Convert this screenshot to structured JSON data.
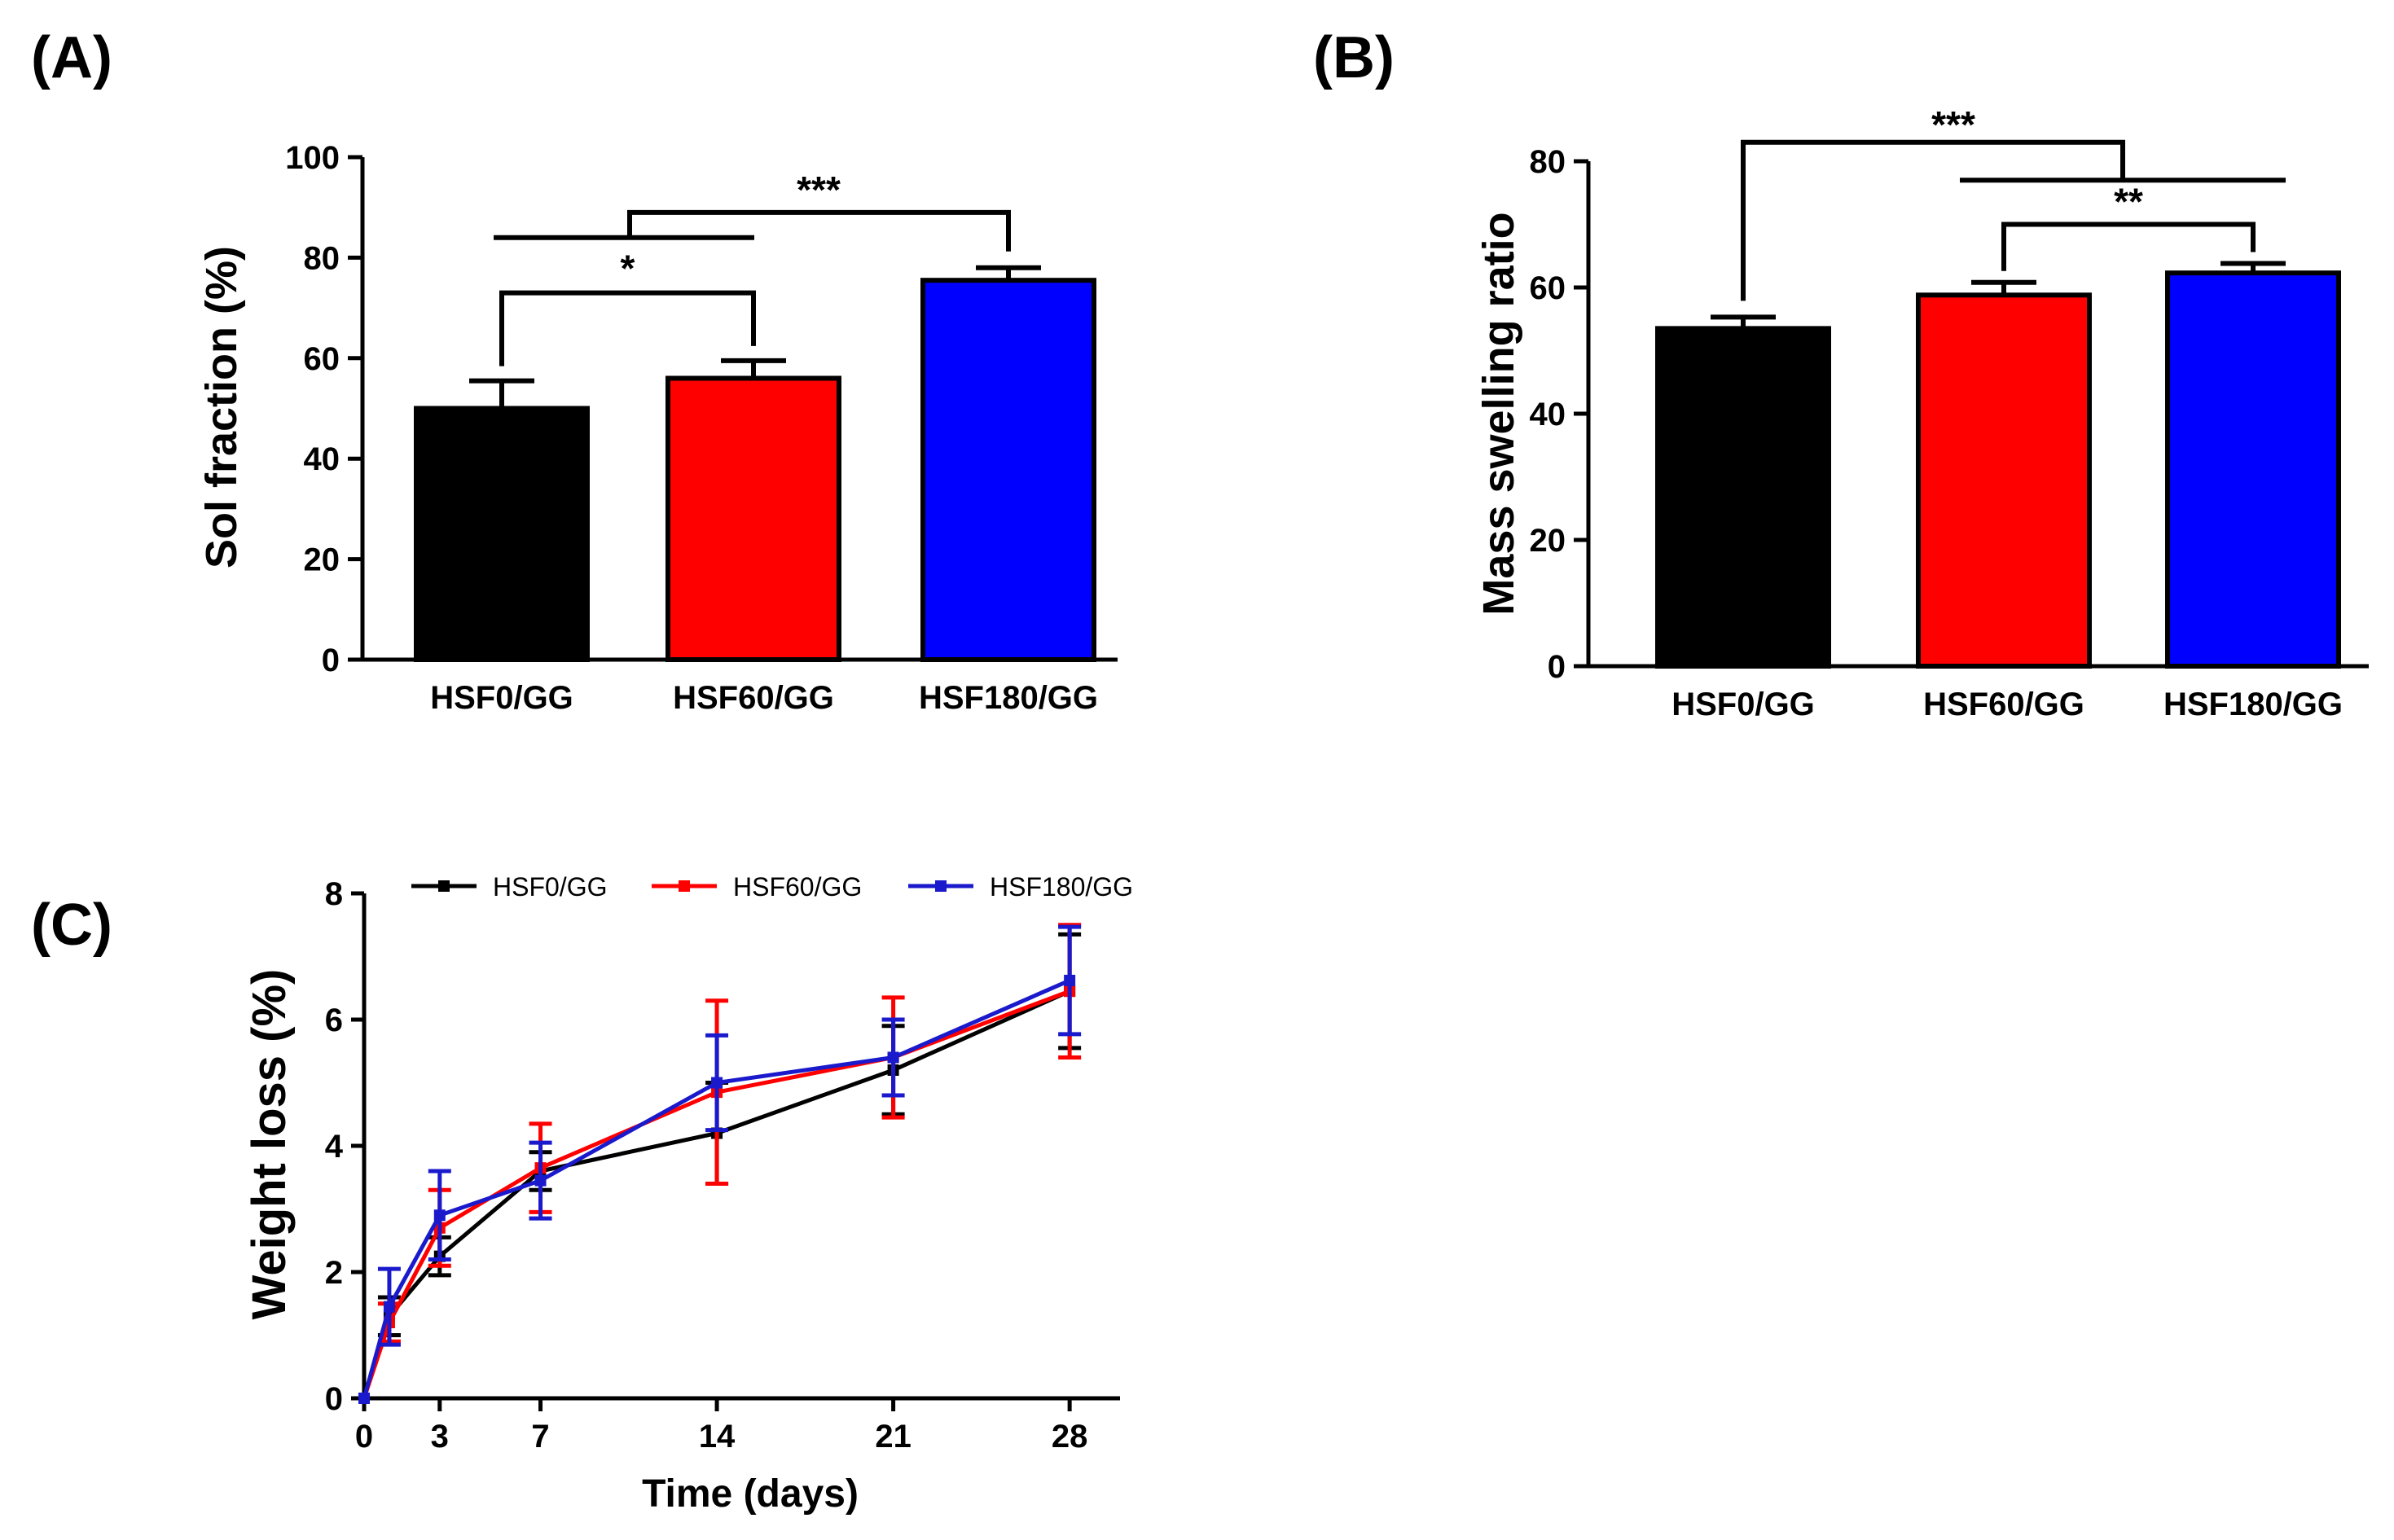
{
  "panels": {
    "a": "(A)",
    "b": "(B)",
    "c": "(C)"
  },
  "colors": {
    "black": "#000000",
    "red": "#ff0000",
    "blue": "#0000ff",
    "line_blue": "#1a1acc"
  },
  "chart_data": [
    {
      "id": "A",
      "type": "bar",
      "title": "",
      "xlabel": "",
      "ylabel": "Sol fraction (%)",
      "categories": [
        "HSF0/GG",
        "HSF60/GG",
        "HSF180/GG"
      ],
      "values": [
        50,
        56,
        75.5
      ],
      "errors": [
        5.5,
        3.5,
        2.5
      ],
      "bar_colors": [
        "#000000",
        "#ff0000",
        "#0000ff"
      ],
      "ylim": [
        0,
        100
      ],
      "yticks": [
        0,
        20,
        40,
        60,
        80,
        100
      ],
      "ytick_labels": [
        "0",
        "20",
        "40",
        "60",
        "80",
        "100"
      ],
      "annotations": [
        {
          "label": "*",
          "between": [
            "HSF0/GG",
            "HSF60/GG"
          ]
        },
        {
          "label": "***",
          "between": [
            "HSF0/GG + HSF60/GG",
            "HSF180/GG"
          ]
        }
      ]
    },
    {
      "id": "B",
      "type": "bar",
      "title": "",
      "xlabel": "",
      "ylabel": "Mass swelling ratio",
      "categories": [
        "HSF0/GG",
        "HSF60/GG",
        "HSF180/GG"
      ],
      "values": [
        53.5,
        58.8,
        62.3
      ],
      "errors": [
        1.8,
        2.0,
        1.5
      ],
      "bar_colors": [
        "#000000",
        "#ff0000",
        "#0000ff"
      ],
      "ylim": [
        0,
        80
      ],
      "yticks": [
        0,
        20,
        40,
        60,
        80
      ],
      "ytick_labels": [
        "0",
        "20",
        "40",
        "60",
        "80"
      ],
      "annotations": [
        {
          "label": "**",
          "between": [
            "HSF60/GG",
            "HSF180/GG"
          ]
        },
        {
          "label": "***",
          "between": [
            "HSF0/GG",
            "HSF60/GG + HSF180/GG"
          ]
        }
      ]
    },
    {
      "id": "C",
      "type": "line",
      "title": "",
      "xlabel": "Time (days)",
      "ylabel": "Weight loss (%)",
      "x": [
        0,
        1,
        3,
        7,
        14,
        21,
        28
      ],
      "xlim": [
        0,
        30
      ],
      "ylim": [
        0,
        8
      ],
      "xticks": [
        0,
        3,
        7,
        14,
        21,
        28
      ],
      "xtick_labels": [
        "0",
        "3",
        "7",
        "14",
        "21",
        "28"
      ],
      "yticks": [
        0,
        2,
        4,
        6,
        8
      ],
      "ytick_labels": [
        "0",
        "2",
        "4",
        "6",
        "8"
      ],
      "legend_position": "top",
      "series": [
        {
          "name": "HSF0/GG",
          "color": "#000000",
          "values": [
            0,
            1.3,
            2.25,
            3.6,
            4.2,
            5.2,
            6.45
          ],
          "errors": [
            0,
            0.3,
            0.3,
            0.3,
            0.8,
            0.7,
            0.9
          ]
        },
        {
          "name": "HSF60/GG",
          "color": "#ff0000",
          "values": [
            0,
            1.2,
            2.7,
            3.65,
            4.85,
            5.4,
            6.45
          ],
          "errors": [
            0,
            0.3,
            0.6,
            0.7,
            1.45,
            0.95,
            1.05
          ]
        },
        {
          "name": "HSF180/GG",
          "color": "#1a1acc",
          "values": [
            0,
            1.45,
            2.9,
            3.45,
            5.0,
            5.4,
            6.62
          ],
          "errors": [
            0,
            0.6,
            0.7,
            0.6,
            0.75,
            0.6,
            0.85
          ]
        }
      ]
    }
  ]
}
